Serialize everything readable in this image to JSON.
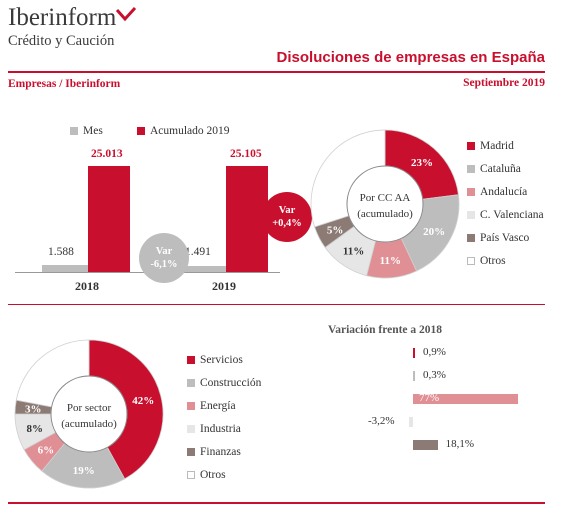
{
  "brand": {
    "name": "Iberinform",
    "subtitle": "Crédito y Caución"
  },
  "header": {
    "title": "Disoluciones de empresas en España",
    "source": "Empresas / Iberinform",
    "date": "Septiembre 2019"
  },
  "colors": {
    "red": "#c8102e",
    "grey": "#bdbdbd",
    "pink": "#e08f95",
    "lightgrey": "#e6e6e6",
    "brown": "#8c7b75",
    "white": "#ffffff"
  },
  "chart_data": [
    {
      "type": "bar",
      "categories": [
        "2018",
        "2019"
      ],
      "series": [
        {
          "name": "Mes",
          "values": [
            1588,
            1491
          ],
          "labels": [
            "1.588",
            "1.491"
          ]
        },
        {
          "name": "Acumulado 2019",
          "values": [
            25013,
            25105
          ],
          "labels": [
            "25.013",
            "25.105"
          ]
        }
      ],
      "annotations": [
        {
          "line1": "Var",
          "line2": "-6,1%"
        },
        {
          "line1": "Var",
          "line2": "+0,4%"
        }
      ]
    },
    {
      "type": "pie",
      "center_line1": "Por CC AA",
      "center_line2": "(acumulado)",
      "slices": [
        {
          "name": "Madrid",
          "value": 23,
          "label": "23%"
        },
        {
          "name": "Cataluña",
          "value": 20,
          "label": "20%"
        },
        {
          "name": "Andalucía",
          "value": 11,
          "label": "11%"
        },
        {
          "name": "C. Valenciana",
          "value": 11,
          "label": "11%"
        },
        {
          "name": "País Vasco",
          "value": 5,
          "label": "5%"
        },
        {
          "name": "Otros",
          "value": 30,
          "label": ""
        }
      ]
    },
    {
      "type": "pie",
      "center_line1": "Por sector",
      "center_line2": "(acumulado)",
      "slices": [
        {
          "name": "Servicios",
          "value": 42,
          "label": "42%"
        },
        {
          "name": "Construcción",
          "value": 19,
          "label": "19%"
        },
        {
          "name": "Energía",
          "value": 6,
          "label": "6%"
        },
        {
          "name": "Industria",
          "value": 8,
          "label": "8%"
        },
        {
          "name": "Finanzas",
          "value": 3,
          "label": "3%"
        },
        {
          "name": "Otros",
          "value": 22,
          "label": ""
        }
      ]
    },
    {
      "type": "bar",
      "orientation": "horizontal",
      "title": "Variación frente a 2018",
      "categories": [
        "Servicios",
        "Construcción",
        "Energía",
        "Industria",
        "Finanzas"
      ],
      "values": [
        0.9,
        0.3,
        77,
        -3.2,
        18.1
      ],
      "labels": [
        "0,9%",
        "0,3%",
        "77%",
        "-3,2%",
        "18,1%"
      ]
    }
  ]
}
